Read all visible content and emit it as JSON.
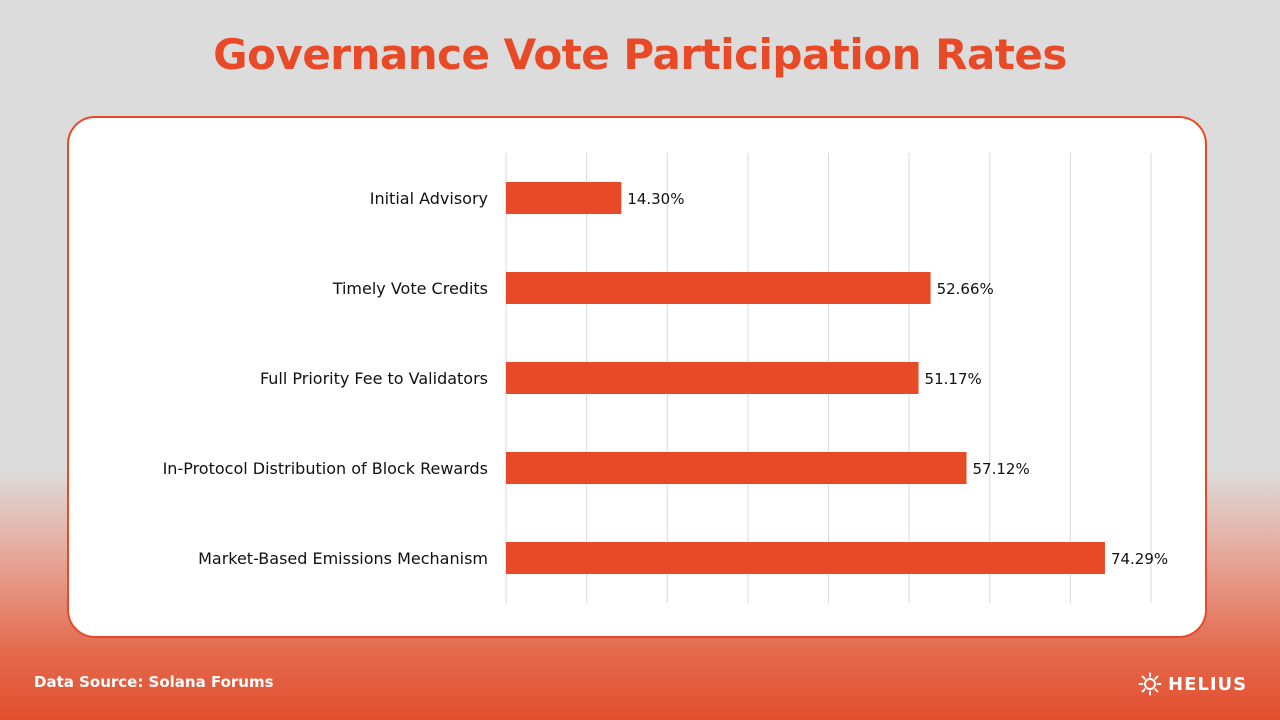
{
  "header": {
    "title": "Governance Vote Participation Rates"
  },
  "footer": {
    "source": "Data Source: Solana Forums",
    "logo_text": "HELIUS"
  },
  "colors": {
    "accent": "#e84a27",
    "bar": "#e84a27",
    "gridline": "#d9d9d9"
  },
  "chart_data": {
    "type": "bar",
    "orientation": "horizontal",
    "categories": [
      "Initial Advisory",
      "Timely Vote Credits",
      "Full Priority Fee to Validators",
      "In-Protocol Distribution of Block Rewards",
      "Market-Based Emissions Mechanism"
    ],
    "values": [
      14.3,
      52.66,
      51.17,
      57.12,
      74.29
    ],
    "value_labels": [
      "14.30%",
      "52.66%",
      "51.17%",
      "57.12%",
      "74.29%"
    ],
    "xlim": [
      0,
      80
    ],
    "grid": true,
    "title": "",
    "xlabel": "",
    "ylabel": ""
  }
}
